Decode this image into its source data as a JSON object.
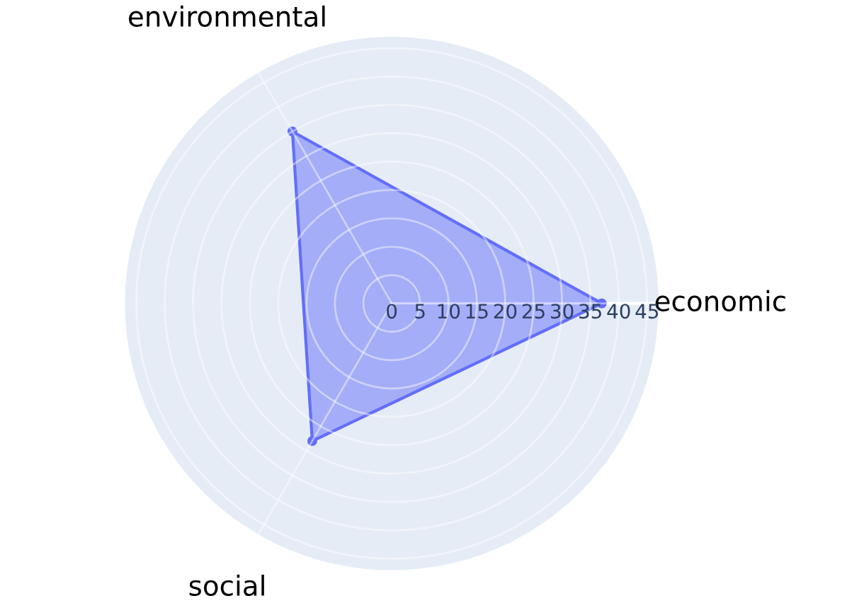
{
  "chart_data": {
    "type": "radar",
    "categories": [
      "economic",
      "social",
      "environmental"
    ],
    "series": [
      {
        "color": "#636efa",
        "values": [
          37,
          28,
          35
        ]
      }
    ],
    "ylim": [
      0,
      47
    ],
    "yticks": [
      0,
      5,
      10,
      15,
      20,
      25,
      30,
      35,
      40,
      45
    ],
    "grid": true,
    "marker": "circle",
    "line_style": "solid"
  }
}
